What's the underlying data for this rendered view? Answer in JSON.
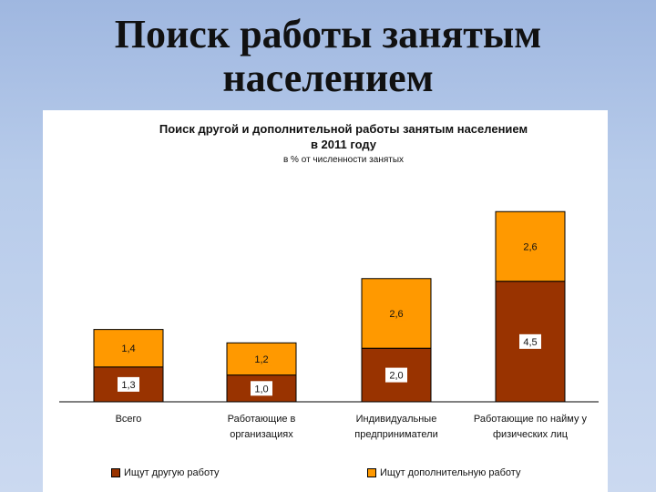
{
  "slide": {
    "title_line1": "Поиск работы занятым",
    "title_line2": "населением"
  },
  "chart_data": {
    "type": "bar",
    "stacked": true,
    "title_line1": "Поиск другой и дополнительной работы занятым населением",
    "title_line2": "в 2011 году",
    "subtitle": "в % от численности занятых",
    "categories": [
      [
        "Всего"
      ],
      [
        "Работающие в",
        "организациях"
      ],
      [
        "Индивидуальные",
        "предприниматели"
      ],
      [
        "Работающие по найму у",
        "физических лиц"
      ]
    ],
    "series": [
      {
        "name": "Ищут другую работу",
        "color": "#993300",
        "values": [
          1.3,
          1.0,
          2.0,
          4.5
        ],
        "labels": [
          "1,3",
          "1,0",
          "2,0",
          "4,5"
        ]
      },
      {
        "name": "Ищут дополнительную работу",
        "color": "#ff9900",
        "values": [
          1.4,
          1.2,
          2.6,
          2.6
        ],
        "labels": [
          "1,4",
          "1,2",
          "2,6",
          "2,6"
        ]
      }
    ],
    "legend_position": "bottom",
    "ylim": [
      0,
      7.5
    ],
    "grid": false
  }
}
